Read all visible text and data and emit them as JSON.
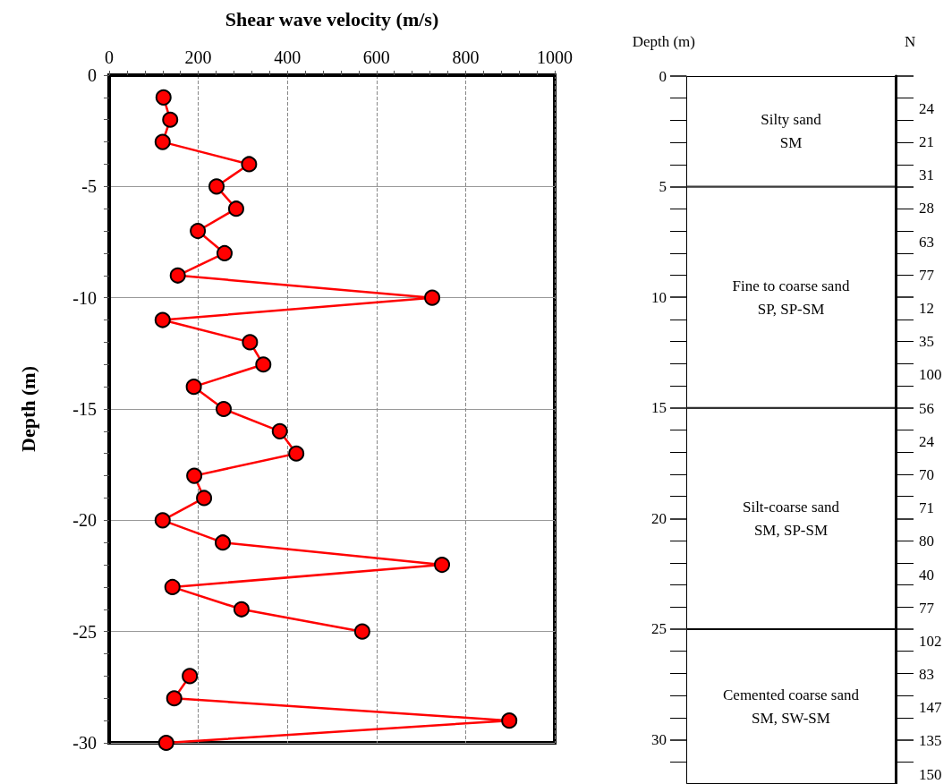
{
  "chart_data": [
    {
      "type": "line",
      "xlabel": "Shear wave velocity (m/s)",
      "ylabel": "Depth (m)",
      "xlim": [
        0,
        1000
      ],
      "xticks": [
        0,
        {
          "value": 40,
          "label": null
        },
        {
          "value": 80,
          "label": null
        },
        {
          "value": 120,
          "label": null
        },
        {
          "value": 160,
          "label": null
        },
        200,
        {
          "value": 240,
          "label": null
        },
        {
          "value": 280,
          "label": null
        },
        {
          "value": 320,
          "label": null
        },
        {
          "value": 360,
          "label": null
        },
        400,
        {
          "value": 440,
          "label": null
        },
        {
          "value": 480,
          "label": null
        },
        {
          "value": 520,
          "label": null
        },
        {
          "value": 560,
          "label": null
        },
        600,
        {
          "value": 640,
          "label": null
        },
        {
          "value": 680,
          "label": null
        },
        {
          "value": 720,
          "label": null
        },
        {
          "value": 760,
          "label": null
        },
        800,
        {
          "value": 840,
          "label": null
        },
        {
          "value": 880,
          "label": null
        },
        {
          "value": 920,
          "label": null
        },
        {
          "value": 960,
          "label": null
        },
        1000
      ],
      "ylim": [
        -30,
        0
      ],
      "yticks": [
        -30,
        {
          "value": -29,
          "label": null
        },
        {
          "value": -28,
          "label": null
        },
        {
          "value": -27,
          "label": null
        },
        {
          "value": -26,
          "label": null
        },
        -25,
        {
          "value": -24,
          "label": null
        },
        {
          "value": -23,
          "label": null
        },
        {
          "value": -22,
          "label": null
        },
        {
          "value": -21,
          "label": null
        },
        -20,
        {
          "value": -19,
          "label": null
        },
        {
          "value": -18,
          "label": null
        },
        {
          "value": -17,
          "label": null
        },
        {
          "value": -16,
          "label": null
        },
        -15,
        {
          "value": -14,
          "label": null
        },
        {
          "value": -13,
          "label": null
        },
        {
          "value": -12,
          "label": null
        },
        {
          "value": -11,
          "label": null
        },
        -10,
        {
          "value": -9,
          "label": null
        },
        {
          "value": -8,
          "label": null
        },
        {
          "value": -7,
          "label": null
        },
        {
          "value": -6,
          "label": null
        },
        -5,
        {
          "value": -4,
          "label": null
        },
        {
          "value": -3,
          "label": null
        },
        {
          "value": -2,
          "label": null
        },
        {
          "value": -1,
          "label": null
        },
        0
      ],
      "grid": true,
      "marker": "circle",
      "line_style": "solid",
      "series": [
        {
          "color": "#ff0000",
          "x": [
            122,
            137,
            120,
            314,
            241,
            285,
            199,
            259,
            154,
            725,
            120,
            316,
            346,
            190,
            257,
            383,
            420,
            191,
            213,
            120,
            255,
            747,
            142,
            297,
            568,
            null,
            181,
            146,
            898,
            128
          ],
          "values": [
            -1,
            -2,
            -3,
            -4,
            -5,
            -6,
            -7,
            -8,
            -9,
            -10,
            -11,
            -12,
            -13,
            -14,
            -15,
            -16,
            -17,
            -18,
            -19,
            -20,
            -21,
            -22,
            -23,
            -24,
            -25,
            null,
            -27,
            -28,
            -29,
            -30
          ]
        }
      ]
    },
    {
      "type": "bar",
      "stacked": true,
      "legend": false,
      "categories": [
        null
      ],
      "ylabel": "Depth (m)",
      "y2label": "N",
      "ylim": [
        32,
        0
      ],
      "yticks": [
        0,
        5,
        10,
        15,
        20,
        25,
        30
      ],
      "series": [
        {
          "name": "Silty sand\nSM",
          "color": "#ffffff",
          "values": [
            5
          ]
        },
        {
          "name": "Fine to coarse sand\nSP, SP-SM",
          "color": "#ffffff",
          "values": [
            10
          ]
        },
        {
          "name": "Silt-coarse sand\nSM, SP-SM",
          "color": "#ffffff",
          "values": [
            10
          ]
        },
        {
          "name": "Cemented coarse sand\nSM, SW-SM",
          "color": "#ffffff",
          "values": [
            7
          ]
        }
      ],
      "annotations": [
        "24",
        "21",
        "31",
        "28",
        "63",
        "77",
        "12",
        "35",
        "100",
        "56",
        "24",
        "70",
        "71",
        "80",
        "40",
        "77",
        "102",
        "83",
        "147",
        "135",
        "150"
      ]
    }
  ]
}
